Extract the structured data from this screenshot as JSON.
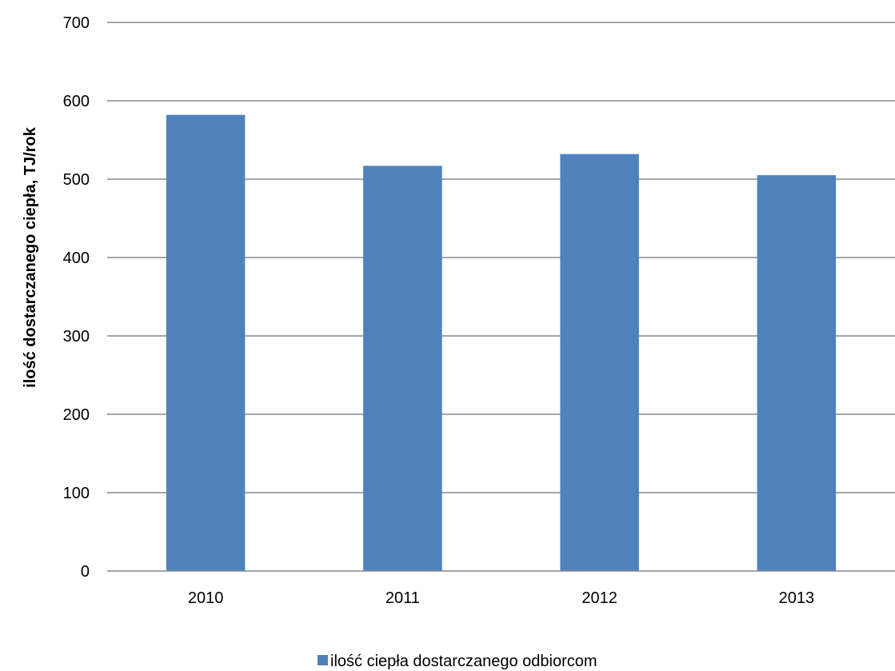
{
  "chart_data": {
    "type": "bar",
    "categories": [
      "2010",
      "2011",
      "2012",
      "2013"
    ],
    "series": [
      {
        "name": "ilość ciepła dostarczanego odbiorcom",
        "values": [
          582,
          517,
          532,
          505
        ],
        "color": "#4f81bd"
      }
    ],
    "title": "",
    "xlabel": "",
    "ylabel": "ilość dostarczanego ciepła, TJ/rok",
    "ylim": [
      0,
      700
    ],
    "yticks": [
      0,
      100,
      200,
      300,
      400,
      500,
      600,
      700
    ],
    "grid": true,
    "legend_position": "bottom-center",
    "colors": {
      "gridline": "#898989",
      "axis": "#898989",
      "bar": "#4f81bd"
    }
  }
}
